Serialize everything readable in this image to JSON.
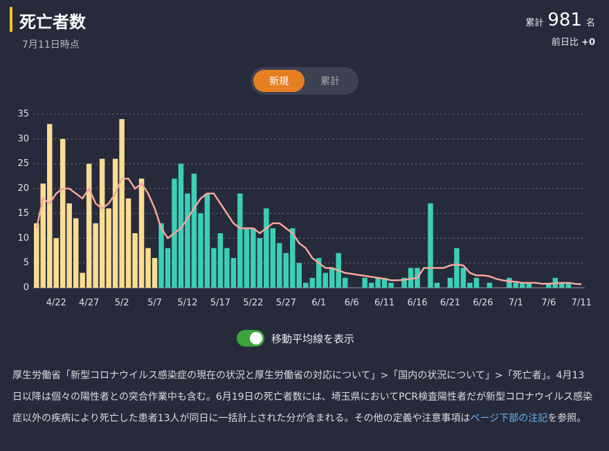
{
  "header": {
    "title": "死亡者数",
    "as_of": "7月11日時点",
    "total_label": "累計",
    "total_value": "981",
    "total_unit": "名",
    "diff_label": "前日比",
    "diff_value": "+0"
  },
  "tabs": [
    "新規",
    "累計"
  ],
  "toggle_label": "移動平均線を表示",
  "note": {
    "text_before": "厚生労働省「新型コロナウイルス感染症の現在の状況と厚生労働省の対応について」>「国内の状況について」>「死亡者」。4月13日以降は個々の陽性者との突合作業中も含む。6月19日の死亡者数には、埼玉県においてPCR検査陽性者だが新型コロナウイルス感染症以外の疾病により死亡した患者13人が同日に一括計上された分が含まれる。その他の定義や注意事項は",
    "link": "ページ下部の注記",
    "text_after": "を参照。"
  },
  "chart_data": {
    "type": "bar",
    "categories": [
      null,
      null,
      null,
      "4/22",
      null,
      null,
      null,
      null,
      "4/27",
      null,
      null,
      null,
      null,
      "5/2",
      null,
      null,
      null,
      null,
      "5/7",
      null,
      null,
      null,
      null,
      "5/12",
      null,
      null,
      null,
      null,
      "5/17",
      null,
      null,
      null,
      null,
      "5/22",
      null,
      null,
      null,
      null,
      "5/27",
      null,
      null,
      null,
      null,
      "6/1",
      null,
      null,
      null,
      null,
      "6/6",
      null,
      null,
      null,
      null,
      "6/11",
      null,
      null,
      null,
      null,
      "6/16",
      null,
      null,
      null,
      null,
      "6/21",
      null,
      null,
      null,
      null,
      "6/26",
      null,
      null,
      null,
      null,
      "7/1",
      null,
      null,
      null,
      null,
      "7/6",
      null,
      null,
      null,
      null,
      "7/11"
    ],
    "series": [
      {
        "color": "#f9dd92",
        "values": [
          13,
          21,
          33,
          10,
          30,
          17,
          14,
          3,
          25,
          13,
          26,
          16,
          26,
          34,
          18,
          11,
          22,
          8,
          6,
          null,
          null,
          null,
          null,
          null,
          null,
          null,
          null,
          null,
          null,
          null,
          null,
          null,
          null,
          null,
          null,
          null,
          null,
          null,
          null,
          null,
          null,
          null,
          null,
          null,
          null,
          null,
          null,
          null,
          null,
          null,
          null,
          null,
          null,
          null,
          null,
          null,
          null,
          null,
          null,
          null,
          null,
          null,
          null,
          null,
          null,
          null,
          null,
          null,
          null,
          null,
          null,
          null,
          null,
          null,
          null,
          null,
          null,
          null,
          null,
          null,
          null,
          null,
          null,
          null
        ]
      },
      {
        "color": "#3ccfb6",
        "values": [
          null,
          null,
          null,
          null,
          null,
          null,
          null,
          null,
          null,
          null,
          null,
          null,
          null,
          null,
          null,
          null,
          null,
          null,
          null,
          13,
          8,
          22,
          25,
          19,
          23,
          15,
          19,
          8,
          11,
          8,
          6,
          19,
          12,
          12,
          10,
          16,
          12,
          9,
          7,
          12,
          5,
          1,
          2,
          6,
          3,
          4,
          7,
          2,
          0,
          0,
          2,
          1,
          2,
          2,
          1,
          0,
          2,
          4,
          4,
          0,
          17,
          1,
          0,
          2,
          8,
          4,
          1,
          2,
          0,
          1,
          0,
          0,
          2,
          1,
          1,
          1,
          0,
          0,
          1,
          2,
          1,
          1,
          0,
          0
        ]
      },
      {
        "type": "line",
        "color": "#f4a79c",
        "values": [
          12,
          18,
          17,
          19,
          20,
          20,
          19,
          18,
          20,
          17,
          16,
          17,
          19,
          22,
          22,
          20,
          21,
          19,
          16,
          12,
          10,
          11,
          12,
          14,
          16,
          18,
          19,
          19,
          17,
          15,
          13,
          12,
          12,
          12,
          11,
          12,
          13,
          13,
          12,
          11,
          9,
          8,
          6,
          5,
          4,
          4,
          3.5,
          3,
          2.8,
          2.6,
          2.4,
          2.2,
          2,
          1.8,
          1.5,
          1.5,
          1.6,
          1.8,
          2,
          4,
          4,
          4,
          4,
          4.5,
          4.7,
          4.5,
          3,
          2.5,
          2.5,
          2.3,
          1.8,
          1.5,
          1.3,
          1.2,
          1,
          1,
          1,
          0.8,
          0.8,
          0.9,
          1,
          1,
          0.8,
          0.7
        ]
      }
    ],
    "ylim": [
      0,
      35
    ],
    "yticks": [
      0,
      5,
      10,
      15,
      20,
      25,
      30,
      35
    ],
    "grid": true
  }
}
